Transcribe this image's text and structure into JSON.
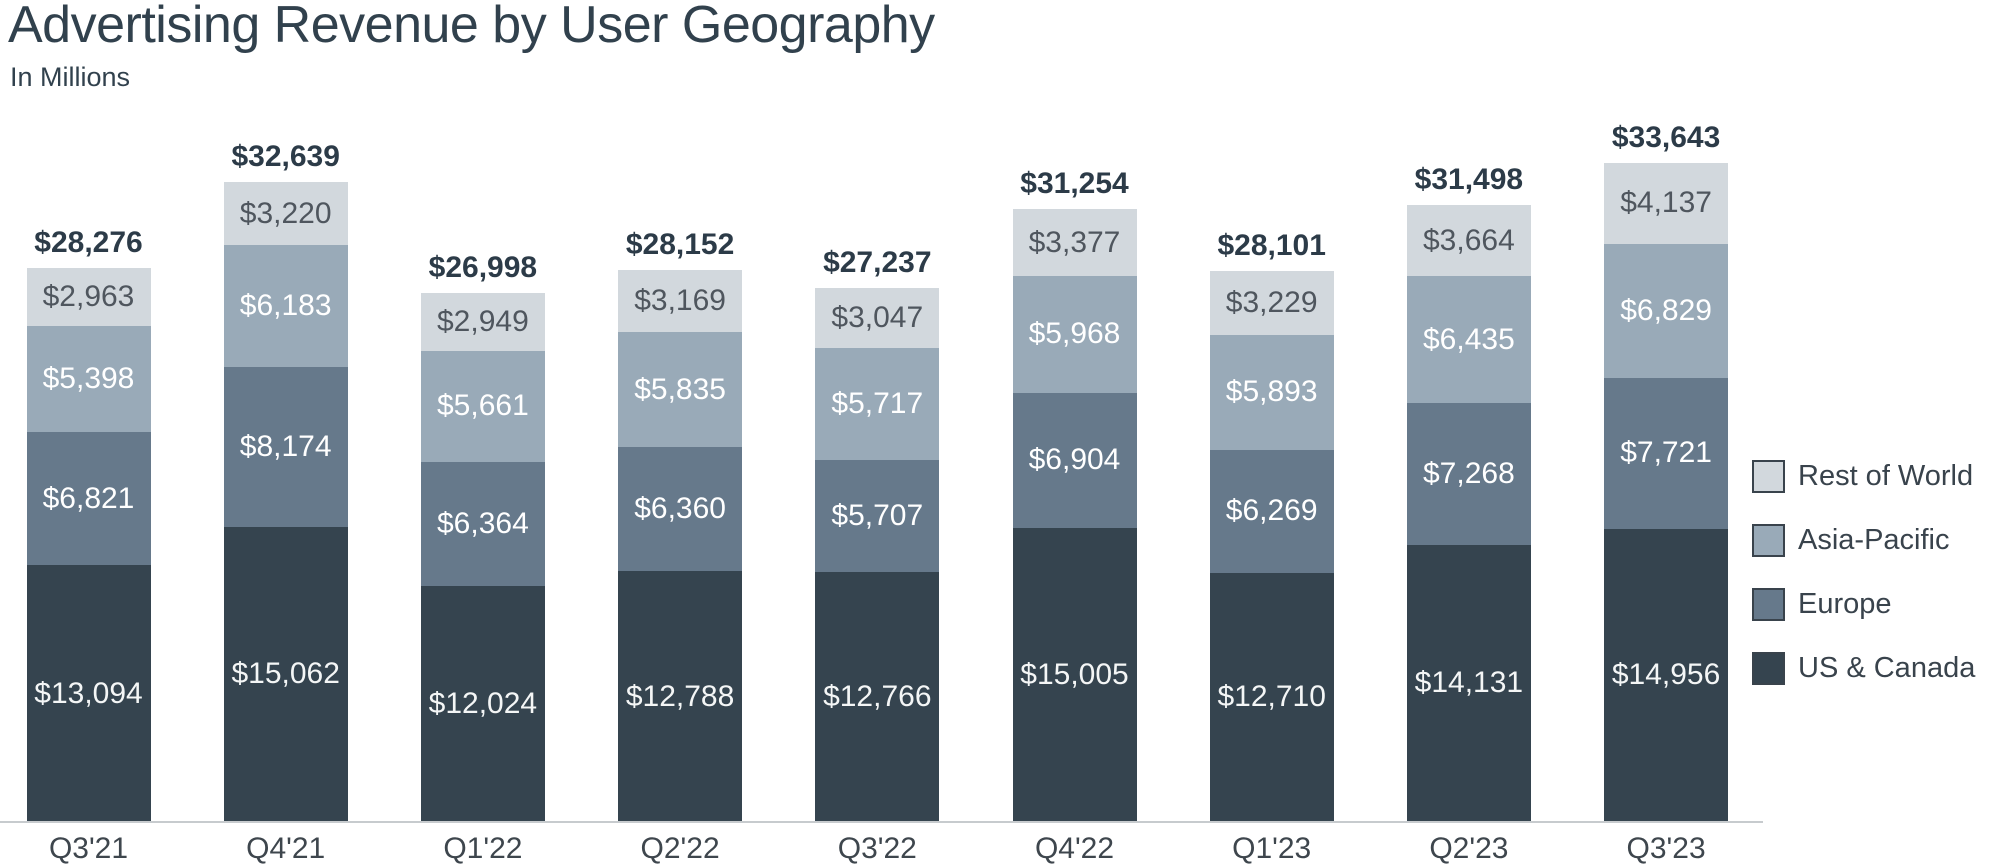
{
  "title": "Advertising Revenue by User Geography",
  "subtitle": "In Millions",
  "legend": [
    {
      "label": "Rest of World",
      "color": "#d2d8dd"
    },
    {
      "label": "Asia-Pacific",
      "color": "#99aab8"
    },
    {
      "label": "Europe",
      "color": "#66798b"
    },
    {
      "label": "US & Canada",
      "color": "#35444f"
    }
  ],
  "chart_data": {
    "type": "bar",
    "stacked": true,
    "unit": "USD millions",
    "value_prefix": "$",
    "grid": false,
    "legend_position": "right",
    "categories": [
      "Q3'21",
      "Q4'21",
      "Q1'22",
      "Q2'22",
      "Q3'22",
      "Q4'22",
      "Q1'23",
      "Q2'23",
      "Q3'23"
    ],
    "series": [
      {
        "name": "US & Canada",
        "color": "#35444f",
        "label_color": "#f4f6f6",
        "values": [
          13094,
          15062,
          12024,
          12788,
          12766,
          15005,
          12710,
          14131,
          14956
        ]
      },
      {
        "name": "Europe",
        "color": "#66798b",
        "label_color": "#ffffff",
        "values": [
          6821,
          8174,
          6364,
          6360,
          5707,
          6904,
          6269,
          7268,
          7721
        ]
      },
      {
        "name": "Asia-Pacific",
        "color": "#99aab8",
        "label_color": "#ffffff",
        "values": [
          5398,
          6183,
          5661,
          5835,
          5717,
          5968,
          5893,
          6435,
          6829
        ]
      },
      {
        "name": "Rest of World",
        "color": "#d2d8dd",
        "label_color": "#4f565e",
        "values": [
          2963,
          3220,
          2949,
          3169,
          3047,
          3377,
          3229,
          3664,
          4137
        ]
      }
    ],
    "totals": [
      28276,
      32639,
      26998,
      28152,
      27237,
      31254,
      28101,
      31498,
      33643
    ]
  },
  "colors": {
    "title": "#31414d",
    "total_label": "#2c3b48",
    "quarter_label": "#3e464d",
    "axis_line": "#c7cbce",
    "background": "#ffffff"
  }
}
